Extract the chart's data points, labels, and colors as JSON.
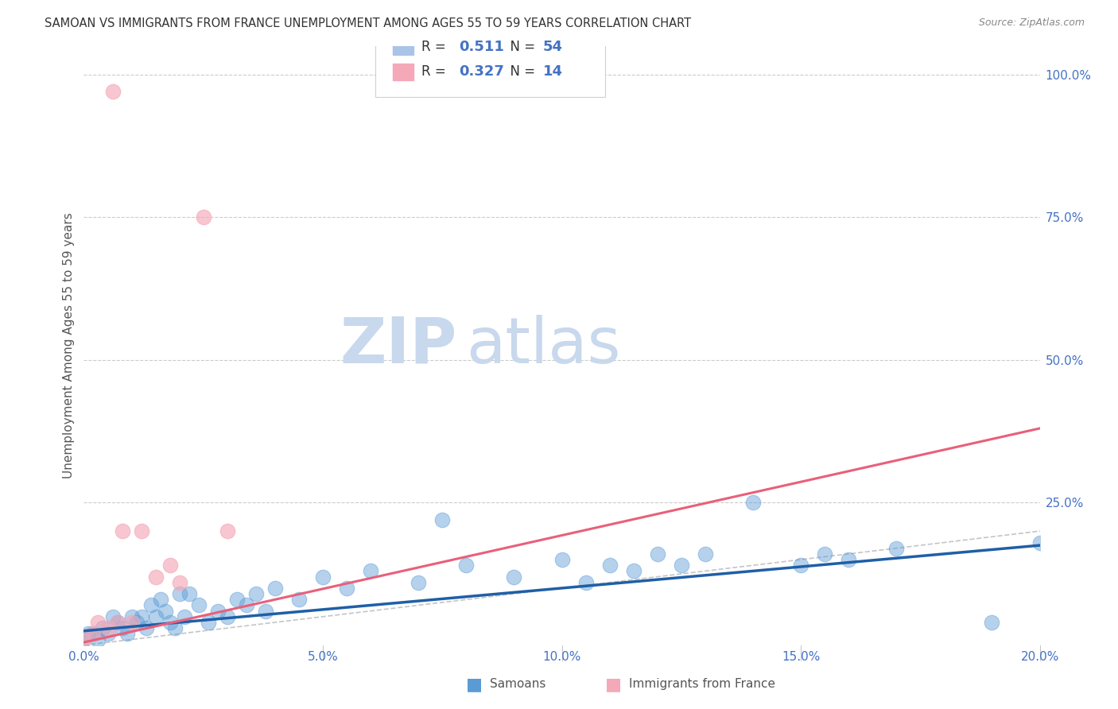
{
  "title": "SAMOAN VS IMMIGRANTS FROM FRANCE UNEMPLOYMENT AMONG AGES 55 TO 59 YEARS CORRELATION CHART",
  "source": "Source: ZipAtlas.com",
  "ylabel": "Unemployment Among Ages 55 to 59 years",
  "xlim": [
    0.0,
    0.2
  ],
  "ylim": [
    0.0,
    1.05
  ],
  "xtick_labels": [
    "0.0%",
    "5.0%",
    "10.0%",
    "15.0%",
    "20.0%"
  ],
  "xtick_vals": [
    0.0,
    0.05,
    0.1,
    0.15,
    0.2
  ],
  "ytick_labels": [
    "100.0%",
    "75.0%",
    "50.0%",
    "25.0%"
  ],
  "ytick_vals": [
    1.0,
    0.75,
    0.5,
    0.25
  ],
  "background_color": "#ffffff",
  "grid_color": "#cccccc",
  "title_color": "#333333",
  "axis_color": "#4472c4",
  "watermark_zip": "ZIP",
  "watermark_atlas": "atlas",
  "watermark_color_zip": "#c8d8ed",
  "watermark_color_atlas": "#c8d8ed",
  "legend_R1": "0.511",
  "legend_N1": "54",
  "legend_R2": "0.327",
  "legend_N2": "14",
  "legend_color_1": "#aac4e8",
  "legend_color_2": "#f4a8b8",
  "samoans_color": "#5b9bd5",
  "france_color": "#f4a8b8",
  "samoans_line_color": "#1f5fa6",
  "france_line_color": "#e8607a",
  "identity_line_color": "#bbbbbb",
  "samoans_x": [
    0.0,
    0.001,
    0.002,
    0.003,
    0.004,
    0.005,
    0.006,
    0.007,
    0.008,
    0.009,
    0.01,
    0.011,
    0.012,
    0.013,
    0.014,
    0.015,
    0.016,
    0.017,
    0.018,
    0.019,
    0.02,
    0.021,
    0.022,
    0.024,
    0.026,
    0.028,
    0.03,
    0.032,
    0.034,
    0.036,
    0.038,
    0.04,
    0.045,
    0.05,
    0.055,
    0.06,
    0.07,
    0.075,
    0.08,
    0.09,
    0.1,
    0.105,
    0.11,
    0.115,
    0.12,
    0.125,
    0.13,
    0.14,
    0.15,
    0.155,
    0.16,
    0.17,
    0.19,
    0.2
  ],
  "samoans_y": [
    0.01,
    0.02,
    0.02,
    0.01,
    0.03,
    0.02,
    0.05,
    0.04,
    0.03,
    0.02,
    0.05,
    0.04,
    0.05,
    0.03,
    0.07,
    0.05,
    0.08,
    0.06,
    0.04,
    0.03,
    0.09,
    0.05,
    0.09,
    0.07,
    0.04,
    0.06,
    0.05,
    0.08,
    0.07,
    0.09,
    0.06,
    0.1,
    0.08,
    0.12,
    0.1,
    0.13,
    0.11,
    0.22,
    0.14,
    0.12,
    0.15,
    0.11,
    0.14,
    0.13,
    0.16,
    0.14,
    0.16,
    0.25,
    0.14,
    0.16,
    0.15,
    0.17,
    0.04,
    0.18
  ],
  "france_x": [
    0.0,
    0.002,
    0.003,
    0.005,
    0.006,
    0.007,
    0.008,
    0.01,
    0.012,
    0.015,
    0.018,
    0.02,
    0.025,
    0.03
  ],
  "france_y": [
    0.01,
    0.02,
    0.04,
    0.03,
    0.97,
    0.04,
    0.2,
    0.04,
    0.2,
    0.12,
    0.14,
    0.11,
    0.75,
    0.2
  ],
  "france_trend_x0": 0.0,
  "france_trend_y0": 0.005,
  "france_trend_x1": 0.2,
  "france_trend_y1": 0.38,
  "samoans_trend_x0": 0.0,
  "samoans_trend_y0": 0.025,
  "samoans_trend_x1": 0.2,
  "samoans_trend_y1": 0.175,
  "legend_label_samoans": "Samoans",
  "legend_label_france": "Immigrants from France"
}
